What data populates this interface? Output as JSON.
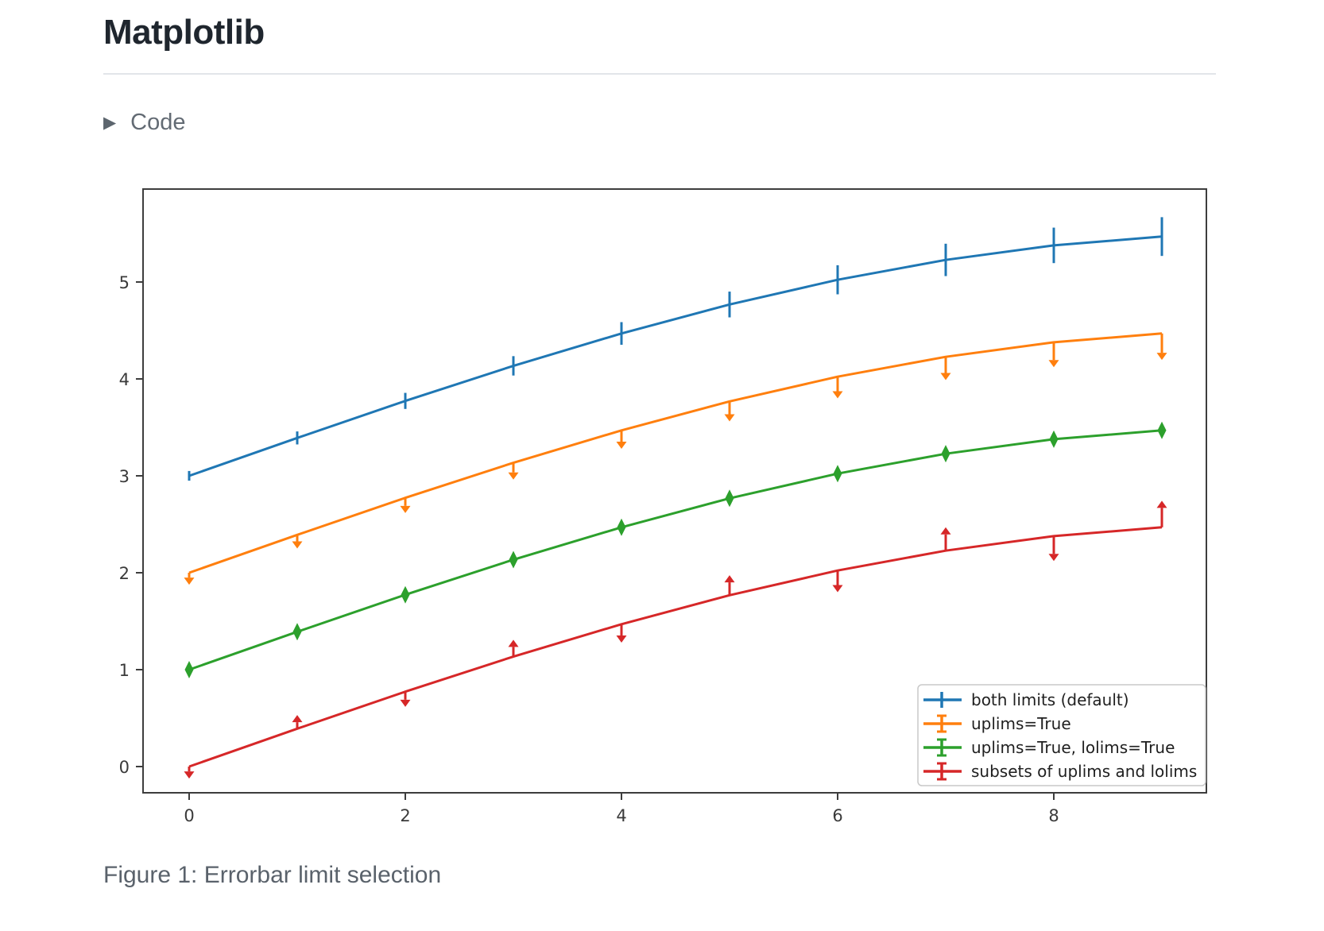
{
  "header": {
    "title": "Matplotlib"
  },
  "code_toggle": {
    "label": "Code",
    "icon": "caret-right"
  },
  "figure": {
    "caption": "Figure 1: Errorbar limit selection"
  },
  "chart_data": {
    "type": "line",
    "title": "",
    "xlabel": "",
    "ylabel": "",
    "grid": false,
    "x": [
      0,
      1,
      2,
      3,
      4,
      5,
      6,
      7,
      8,
      9
    ],
    "yerr": [
      0.05,
      0.067,
      0.083,
      0.1,
      0.117,
      0.133,
      0.15,
      0.167,
      0.183,
      0.2
    ],
    "series": [
      {
        "name": "both limits (default)",
        "color": "#1f77b4",
        "limits": "none",
        "values": [
          3.0,
          3.391,
          3.773,
          4.135,
          4.469,
          4.768,
          5.023,
          5.228,
          5.378,
          5.469
        ]
      },
      {
        "name": "uplims=True",
        "color": "#ff7f0e",
        "limits": "uplims",
        "values": [
          2.0,
          2.391,
          2.773,
          3.135,
          3.469,
          3.768,
          4.023,
          4.228,
          4.378,
          4.469
        ]
      },
      {
        "name": "uplims=True, lolims=True",
        "color": "#2ca02c",
        "limits": "uplims+lolims",
        "values": [
          1.0,
          1.391,
          1.773,
          2.135,
          2.469,
          2.768,
          3.023,
          3.228,
          3.378,
          3.469
        ]
      },
      {
        "name": "subsets of uplims and lolims",
        "color": "#d62728",
        "limits": [
          "uplims",
          "lolims",
          "uplims",
          "lolims",
          "uplims",
          "lolims",
          "uplims",
          "lolims",
          "uplims",
          "lolims"
        ],
        "values": [
          0.0,
          0.391,
          0.773,
          1.135,
          1.469,
          1.768,
          2.023,
          2.228,
          2.378,
          2.469
        ]
      }
    ],
    "xticks": [
      0,
      2,
      4,
      6,
      8
    ],
    "yticks": [
      0,
      1,
      2,
      3,
      4,
      5
    ],
    "xlim": [
      -0.43,
      9.41
    ],
    "ylim": [
      -0.27,
      5.96
    ],
    "legend": {
      "location": "lower right"
    }
  }
}
